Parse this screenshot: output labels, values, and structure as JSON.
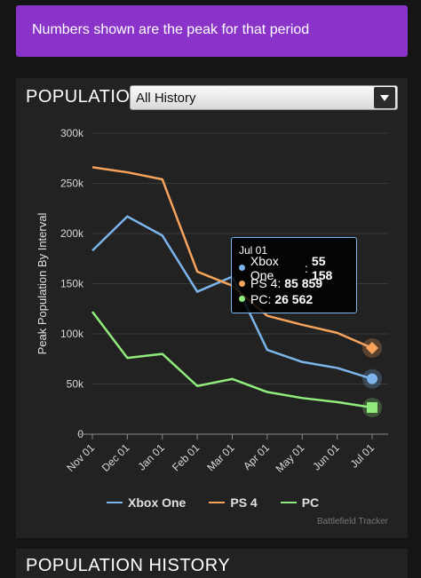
{
  "banner": {
    "text": "Numbers shown are the peak for that period"
  },
  "panel": {
    "title": "POPULATION HISTORY",
    "range_select": {
      "value": "All History"
    }
  },
  "panel2": {
    "title": "POPULATION HISTORY"
  },
  "credit": "Battlefield Tracker",
  "colors": {
    "xbox": "#7cb5ec",
    "ps4": "#f7a35c",
    "pc": "#90ed7d",
    "banner": "#8a33c9"
  },
  "tooltip": {
    "title": "Jul 01",
    "rows": [
      {
        "name": "Xbox One",
        "value": "55 158"
      },
      {
        "name": "PS 4",
        "value": "85 859"
      },
      {
        "name": "PC",
        "value": "26 562"
      }
    ]
  },
  "chart_data": {
    "type": "line",
    "categories": [
      "Nov 01",
      "Dec 01",
      "Jan 01",
      "Feb 01",
      "Mar 01",
      "Apr 01",
      "May 01",
      "Jun 01",
      "Jul 01"
    ],
    "ylabel": "Peak Population By Interval",
    "ylim": [
      0,
      300000
    ],
    "yticks": [
      "0",
      "50k",
      "100k",
      "150k",
      "200k",
      "250k",
      "300k"
    ],
    "grid": true,
    "legend": "bottom",
    "series": [
      {
        "name": "Xbox One",
        "color": "#7cb5ec",
        "marker": "circle",
        "values": [
          183000,
          217000,
          198000,
          142000,
          157000,
          84000,
          72000,
          66000,
          55158
        ]
      },
      {
        "name": "PS 4",
        "color": "#f7a35c",
        "marker": "diamond",
        "values": [
          266000,
          261000,
          254000,
          162000,
          148000,
          118000,
          109000,
          101000,
          85859
        ]
      },
      {
        "name": "PC",
        "color": "#90ed7d",
        "marker": "square",
        "values": [
          122000,
          76000,
          80000,
          48000,
          55000,
          42000,
          36000,
          32000,
          26562
        ]
      }
    ]
  }
}
